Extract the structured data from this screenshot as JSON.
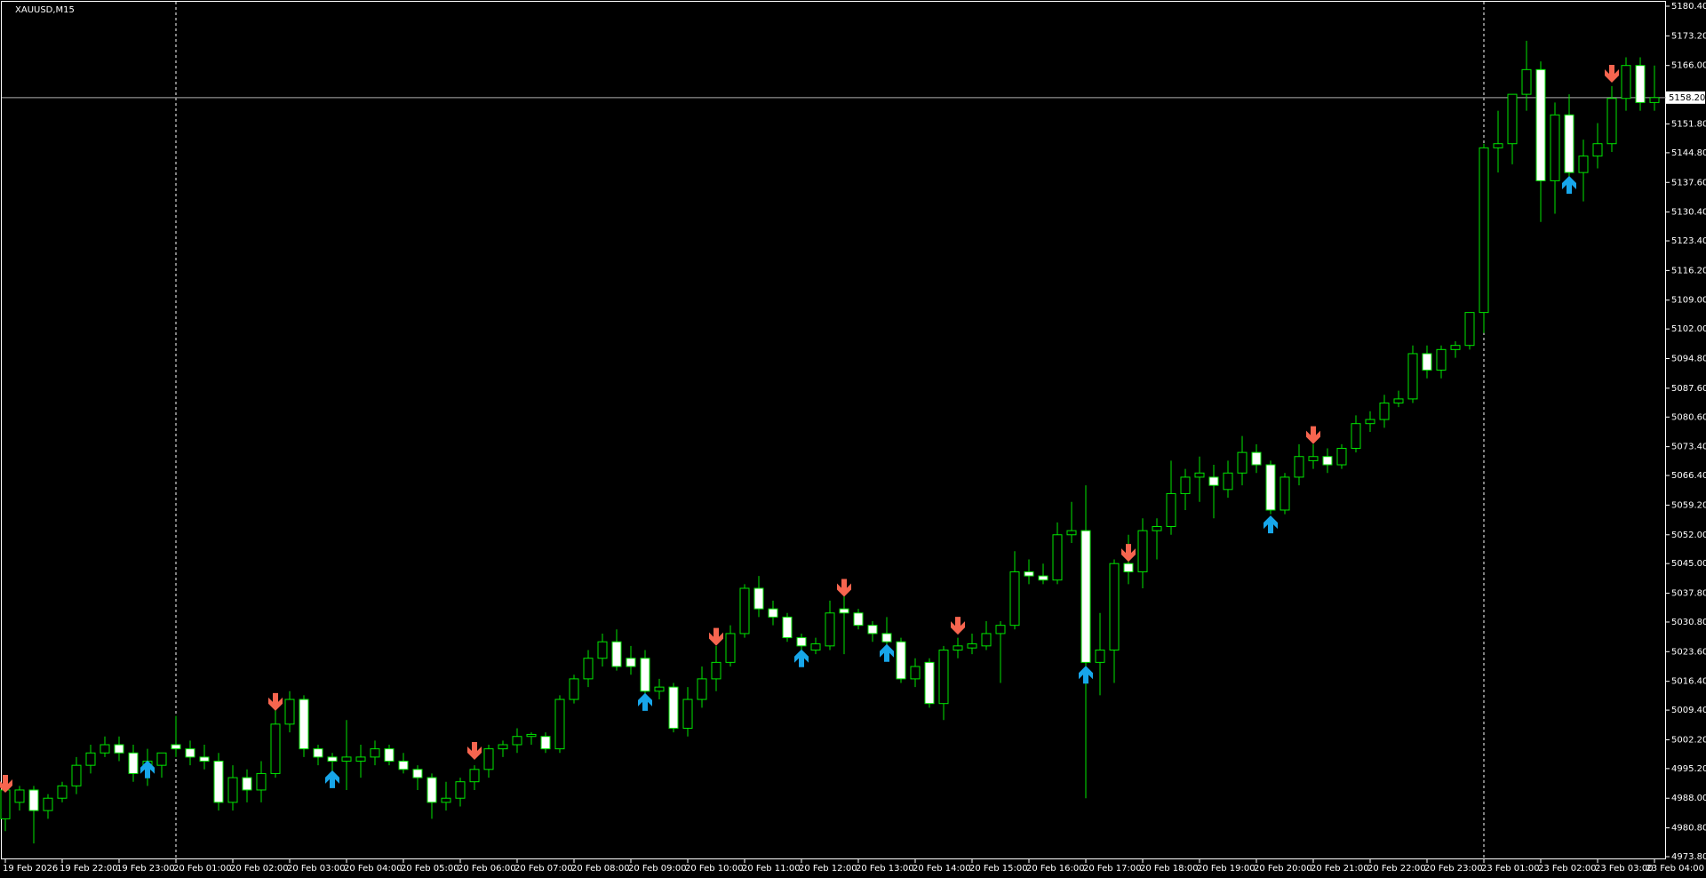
{
  "chart_data": {
    "type": "candlestick",
    "title": "XAUUSD,M15",
    "categories": [
      "19 Feb 2026",
      null,
      null,
      null,
      "19 Feb 22:00",
      null,
      null,
      null,
      "19 Feb 23:00",
      null,
      null,
      null,
      "20 Feb 01:00",
      null,
      null,
      null,
      "20 Feb 02:00",
      null,
      null,
      null,
      "20 Feb 03:00",
      null,
      null,
      null,
      "20 Feb 04:00",
      null,
      null,
      null,
      "20 Feb 05:00",
      null,
      null,
      null,
      "20 Feb 06:00",
      null,
      null,
      null,
      "20 Feb 07:00",
      null,
      null,
      null,
      "20 Feb 08:00",
      null,
      null,
      null,
      "20 Feb 09:00",
      null,
      null,
      null,
      "20 Feb 10:00",
      null,
      null,
      null,
      "20 Feb 11:00",
      null,
      null,
      null,
      "20 Feb 12:00",
      null,
      null,
      null,
      "20 Feb 13:00",
      null,
      null,
      null,
      "20 Feb 14:00",
      null,
      null,
      null,
      "20 Feb 15:00",
      null,
      null,
      null,
      "20 Feb 16:00",
      null,
      null,
      null,
      "20 Feb 17:00",
      null,
      null,
      null,
      "20 Feb 18:00",
      null,
      null,
      null,
      "20 Feb 19:00",
      null,
      null,
      null,
      "20 Feb 20:00",
      null,
      null,
      null,
      "20 Feb 21:00",
      null,
      null,
      null,
      "20 Feb 22:00",
      null,
      null,
      null,
      "20 Feb 23:00",
      null,
      null,
      null,
      "23 Feb 01:00",
      null,
      null,
      null,
      "23 Feb 02:00",
      null,
      null,
      null,
      "23 Feb 03:00",
      null,
      null,
      null,
      "23 Feb 04:00"
    ],
    "open": [
      4983,
      4987,
      4990,
      4985,
      4988,
      4991,
      4996,
      4999,
      5001,
      4999,
      4995,
      4996,
      5001,
      5000,
      4998,
      4997,
      4987,
      4993,
      4990,
      4994,
      5006,
      5012,
      5000,
      4998,
      4997,
      4997,
      4998,
      5000,
      4997,
      4995,
      4993,
      4987,
      4988,
      4992,
      4995,
      5000,
      5001,
      5003,
      5003,
      5000,
      5012,
      5017,
      5022,
      5026,
      5022,
      5022,
      5014,
      5015,
      5005,
      5012,
      5017,
      5021,
      5028,
      5039,
      5034,
      5032,
      5027,
      5024,
      5025,
      5034,
      5033,
      5030,
      5028,
      5026,
      5017,
      5021,
      5011,
      5024,
      5024.5,
      5025,
      5028,
      5030,
      5043,
      5042,
      5041,
      5052,
      5053,
      5021,
      5024,
      5045,
      5043,
      5053,
      5054,
      5062,
      5066,
      5066,
      5063,
      5067,
      5072,
      5069,
      5058,
      5066,
      5070,
      5071,
      5069,
      5073,
      5079,
      5080,
      5084,
      5085,
      5096,
      5092,
      5097,
      5098,
      5106,
      5146,
      5147,
      5159,
      5165,
      5138,
      5154,
      5140,
      5144,
      5147,
      5158,
      5166,
      5157
    ],
    "high": [
      4992,
      4991,
      4991,
      4989,
      4992,
      4998,
      5001,
      5003,
      5003,
      5001,
      5000,
      4999,
      5008,
      5002,
      5001,
      4999,
      4996,
      4995,
      4997,
      5012,
      5014,
      5013,
      5001,
      4999,
      5007,
      5001,
      5002,
      5001,
      4999,
      4996,
      4994,
      4992,
      4993,
      4996,
      5001,
      5002,
      5005,
      5004,
      5004,
      5013,
      5018,
      5024,
      5028,
      5029,
      5025,
      5024,
      5017,
      5016,
      5015,
      5020,
      5025,
      5030,
      5040,
      5042,
      5036,
      5033,
      5028,
      5027,
      5036,
      5038,
      5034,
      5031,
      5032,
      5027,
      5022,
      5022,
      5025,
      5027,
      5028,
      5031,
      5031,
      5048,
      5046,
      5045,
      5055,
      5060,
      5064,
      5033,
      5046,
      5052,
      5056,
      5056,
      5070,
      5068,
      5071,
      5069,
      5070,
      5076,
      5074,
      5070,
      5067,
      5074,
      5074,
      5073,
      5074,
      5081,
      5082,
      5086,
      5087,
      5098,
      5098,
      5098,
      5099,
      5106,
      5147,
      5155,
      5159,
      5172,
      5167,
      5157,
      5159,
      5148,
      5152,
      5161,
      5168,
      5168,
      5166
    ],
    "low": [
      4980,
      4985,
      4977,
      4983,
      4987,
      4989,
      4994,
      4998,
      4997,
      4992,
      4991,
      4993,
      4998,
      4996,
      4995,
      4985,
      4985,
      4987,
      4987,
      4993,
      5004,
      4998,
      4996,
      4993,
      4990,
      4993,
      4996,
      4996,
      4994,
      4990,
      4983,
      4985,
      4986,
      4990,
      4993,
      4998,
      4999,
      5001,
      4999,
      4999,
      5011,
      5015,
      5020,
      5019,
      5018,
      5011,
      5012,
      5004,
      5003,
      5010,
      5014,
      5020,
      5027,
      5032,
      5030,
      5026,
      5022,
      5023,
      5024,
      5023,
      5029,
      5026,
      5024,
      5016,
      5015,
      5010,
      5007,
      5022,
      5023,
      5024,
      5016,
      5029,
      5040,
      5040,
      5040,
      5050,
      4988,
      5013,
      5016,
      5040,
      5039,
      5046,
      5052,
      5058,
      5060,
      5056,
      5061,
      5064,
      5067,
      5057,
      5057,
      5064,
      5068,
      5067,
      5068,
      5072,
      5077,
      5078,
      5083,
      5084,
      5090,
      5090,
      5095,
      5097,
      5101,
      5140,
      5142,
      5155,
      5128,
      5130,
      5138,
      5133,
      5141,
      5145,
      5155,
      5155,
      5155
    ],
    "close": [
      4990,
      4990,
      4985,
      4988,
      4991,
      4996,
      4999,
      5001,
      4999,
      4994,
      4997,
      4999,
      5000,
      4998,
      4997,
      4987,
      4993,
      4990,
      4994,
      5006,
      5012,
      5000,
      4998,
      4997,
      4998,
      4998,
      5000,
      4997,
      4995,
      4993,
      4987,
      4988,
      4992,
      4995,
      5000,
      5001,
      5003,
      5003.5,
      5000,
      5012,
      5017,
      5022,
      5026,
      5020,
      5020,
      5014,
      5015,
      5005,
      5012,
      5017,
      5021,
      5028,
      5039,
      5034,
      5032,
      5027,
      5025,
      5025.5,
      5033,
      5033,
      5030,
      5028,
      5026,
      5017,
      5020,
      5011,
      5024,
      5025,
      5025.5,
      5028,
      5030,
      5043,
      5042,
      5041,
      5052,
      5053,
      5021,
      5024,
      5045,
      5043,
      5053,
      5054,
      5062,
      5066,
      5067,
      5064,
      5067,
      5072,
      5069,
      5058,
      5066,
      5071,
      5071,
      5069,
      5073,
      5079,
      5080,
      5084,
      5085,
      5096,
      5092,
      5097,
      5098,
      5106,
      5146,
      5147,
      5159,
      5165,
      5138,
      5154,
      5140,
      5144,
      5147,
      5158,
      5166,
      5157,
      5158.2
    ],
    "line_color": "#00e600",
    "bull_fill": "#000000",
    "bear_fill": "#ffffff",
    "sell_arrows": {
      "color": "#f7654f",
      "x": [
        0,
        19,
        33,
        50,
        59,
        67,
        79,
        92,
        113
      ],
      "values": [
        4991.5,
        5011.4,
        4999.5,
        5027.2,
        5039.1,
        5029.9,
        5047.6,
        5076.2,
        5164
      ]
    },
    "buy_arrows": {
      "color": "#17a6ea",
      "x": [
        10,
        23,
        45,
        56,
        62,
        76,
        89,
        110
      ],
      "values": [
        4995,
        4992.6,
        5011.4,
        5022,
        5023.3,
        5018,
        5054.5,
        5137
      ]
    },
    "separators": [
      12,
      104
    ],
    "current_price": {
      "value": 5158.2,
      "label": "5158.20"
    },
    "ylim": [
      4973.8,
      5180.4
    ],
    "yticks": [
      {
        "value": 4973.8,
        "label": "4973.80"
      },
      {
        "value": 4980.8,
        "label": "4980.80"
      },
      {
        "value": 4988,
        "label": "4988.00"
      },
      {
        "value": 4995.2,
        "label": "4995.20"
      },
      {
        "value": 5002.2,
        "label": "5002.20"
      },
      {
        "value": 5009.4,
        "label": "5009.40"
      },
      {
        "value": 5016.4,
        "label": "5016.40"
      },
      {
        "value": 5023.6,
        "label": "5023.60"
      },
      {
        "value": 5030.8,
        "label": "5030.80"
      },
      {
        "value": 5037.8,
        "label": "5037.80"
      },
      {
        "value": 5045,
        "label": "5045.00"
      },
      {
        "value": 5052,
        "label": "5052.00"
      },
      {
        "value": 5059.2,
        "label": "5059.20"
      },
      {
        "value": 5066.4,
        "label": "5066.40"
      },
      {
        "value": 5073.4,
        "label": "5073.40"
      },
      {
        "value": 5080.6,
        "label": "5080.60"
      },
      {
        "value": 5087.6,
        "label": "5087.60"
      },
      {
        "value": 5094.8,
        "label": "5094.80"
      },
      {
        "value": 5102,
        "label": "5102.00"
      },
      {
        "value": 5109,
        "label": "5109.00"
      },
      {
        "value": 5116.2,
        "label": "5116.20"
      },
      {
        "value": 5123.4,
        "label": "5123.40"
      },
      {
        "value": 5130.4,
        "label": "5130.40"
      },
      {
        "value": 5137.6,
        "label": "5137.60"
      },
      {
        "value": 5144.8,
        "label": "5144.80"
      },
      {
        "value": 5151.8,
        "label": "5151.80"
      },
      {
        "value": 5166,
        "label": "5166.00"
      },
      {
        "value": 5173.2,
        "label": "5173.20"
      },
      {
        "value": 5180.4,
        "label": "5180.40"
      }
    ]
  }
}
